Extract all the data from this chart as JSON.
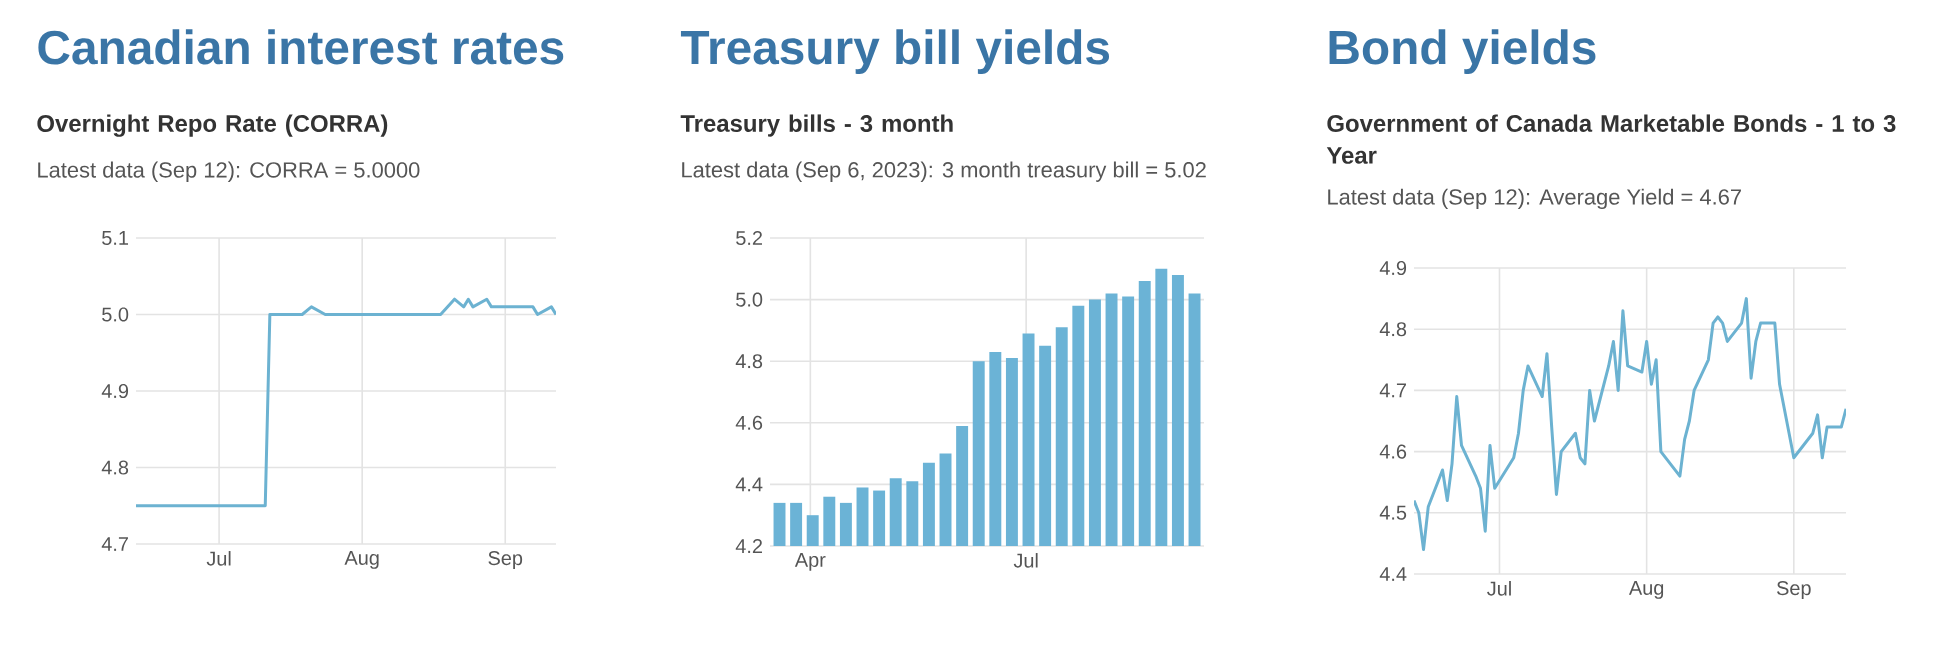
{
  "chart_data": [
    {
      "type": "line",
      "title": "Canadian interest rates",
      "subtitle": "Overnight Repo Rate (CORRA)",
      "annotations": [
        "Latest data (Sep 12): CORRA = 5.0000"
      ],
      "color": "#6cb2d1",
      "grid": true,
      "x": [
        "2023-06-13",
        "2023-07-11",
        "2023-07-12",
        "2023-07-19",
        "2023-07-21",
        "2023-07-24",
        "2023-08-18",
        "2023-08-21",
        "2023-08-23",
        "2023-08-24",
        "2023-08-25",
        "2023-08-28",
        "2023-08-29",
        "2023-09-07",
        "2023-09-08",
        "2023-09-11",
        "2023-09-12"
      ],
      "values": [
        4.75,
        4.75,
        5.0,
        5.0,
        5.01,
        5.0,
        5.0,
        5.02,
        5.01,
        5.02,
        5.01,
        5.02,
        5.01,
        5.01,
        5.0,
        5.01,
        5.0
      ],
      "xlim": [
        "2023-06-13",
        "2023-09-12"
      ],
      "xticks": [
        {
          "value": "2023-07-01",
          "label": "Jul"
        },
        {
          "value": "2023-08-01",
          "label": "Aug"
        },
        {
          "value": "2023-09-01",
          "label": "Sep"
        }
      ],
      "ylim": [
        4.7,
        5.1
      ],
      "yticks": [
        4.7,
        4.8,
        4.9,
        {
          "value": 5.0,
          "label": "5.0"
        },
        5.1
      ]
    },
    {
      "type": "bar",
      "title": "Treasury bill yields",
      "subtitle": "Treasury bills - 3 month",
      "annotations": [
        "Latest data (Sep 6, 2023): 3 month treasury bill = 5.02"
      ],
      "color": "#6bb3d6",
      "grid": true,
      "x": [
        "2023-03-19",
        "2023-03-26",
        "2023-04-02",
        "2023-04-09",
        "2023-04-16",
        "2023-04-23",
        "2023-04-30",
        "2023-05-07",
        "2023-05-14",
        "2023-05-21",
        "2023-05-28",
        "2023-06-04",
        "2023-06-11",
        "2023-06-18",
        "2023-06-25",
        "2023-07-02",
        "2023-07-09",
        "2023-07-16",
        "2023-07-23",
        "2023-07-30",
        "2023-08-06",
        "2023-08-13",
        "2023-08-20",
        "2023-08-27",
        "2023-09-03",
        "2023-09-10"
      ],
      "values": [
        4.34,
        4.34,
        4.3,
        4.36,
        4.34,
        4.39,
        4.38,
        4.42,
        4.41,
        4.47,
        4.5,
        4.59,
        4.8,
        4.83,
        4.81,
        4.89,
        4.85,
        4.91,
        4.98,
        5.0,
        5.02,
        5.01,
        5.06,
        5.1,
        5.08,
        5.02
      ],
      "xlim": [
        "2023-03-15",
        "2023-09-14"
      ],
      "xticks": [
        {
          "value": "2023-04-01",
          "label": "Apr"
        },
        {
          "value": "2023-07-01",
          "label": "Jul"
        }
      ],
      "ylim": [
        4.2,
        5.2
      ],
      "yticks": [
        4.2,
        4.4,
        4.6,
        4.8,
        {
          "value": 5.0,
          "label": "5.0"
        },
        5.2
      ]
    },
    {
      "type": "line",
      "title": "Bond yields",
      "subtitle": "Government of Canada Marketable Bonds - 1 to 3 Year",
      "annotations": [
        "Latest data (Sep 12): Average Yield = 4.67"
      ],
      "color": "#6cb2d1",
      "grid": true,
      "x": [
        "2023-06-13",
        "2023-06-14",
        "2023-06-15",
        "2023-06-16",
        "2023-06-19",
        "2023-06-20",
        "2023-06-21",
        "2023-06-22",
        "2023-06-23",
        "2023-06-26",
        "2023-06-27",
        "2023-06-28",
        "2023-06-29",
        "2023-06-30",
        "2023-07-04",
        "2023-07-05",
        "2023-07-06",
        "2023-07-07",
        "2023-07-10",
        "2023-07-11",
        "2023-07-12",
        "2023-07-13",
        "2023-07-14",
        "2023-07-17",
        "2023-07-18",
        "2023-07-19",
        "2023-07-20",
        "2023-07-21",
        "2023-07-24",
        "2023-07-25",
        "2023-07-26",
        "2023-07-27",
        "2023-07-28",
        "2023-07-31",
        "2023-08-01",
        "2023-08-02",
        "2023-08-03",
        "2023-08-04",
        "2023-08-08",
        "2023-08-09",
        "2023-08-10",
        "2023-08-11",
        "2023-08-14",
        "2023-08-15",
        "2023-08-16",
        "2023-08-17",
        "2023-08-18",
        "2023-08-21",
        "2023-08-22",
        "2023-08-23",
        "2023-08-24",
        "2023-08-25",
        "2023-08-28",
        "2023-08-29",
        "2023-08-30",
        "2023-08-31",
        "2023-09-01",
        "2023-09-05",
        "2023-09-06",
        "2023-09-07",
        "2023-09-08",
        "2023-09-11",
        "2023-09-12"
      ],
      "values": [
        4.52,
        4.5,
        4.44,
        4.51,
        4.57,
        4.52,
        4.58,
        4.69,
        4.61,
        4.56,
        4.54,
        4.47,
        4.61,
        4.54,
        4.59,
        4.63,
        4.7,
        4.74,
        4.69,
        4.76,
        4.64,
        4.53,
        4.6,
        4.63,
        4.59,
        4.58,
        4.7,
        4.65,
        4.74,
        4.78,
        4.7,
        4.83,
        4.74,
        4.73,
        4.78,
        4.71,
        4.75,
        4.6,
        4.56,
        4.62,
        4.65,
        4.7,
        4.75,
        4.81,
        4.82,
        4.81,
        4.78,
        4.81,
        4.85,
        4.72,
        4.78,
        4.81,
        4.81,
        4.71,
        4.67,
        4.63,
        4.59,
        4.63,
        4.66,
        4.59,
        4.64,
        4.64,
        4.67
      ],
      "xlim": [
        "2023-06-13",
        "2023-09-12"
      ],
      "xticks": [
        {
          "value": "2023-07-01",
          "label": "Jul"
        },
        {
          "value": "2023-08-01",
          "label": "Aug"
        },
        {
          "value": "2023-09-01",
          "label": "Sep"
        }
      ],
      "ylim": [
        4.4,
        4.9
      ],
      "yticks": [
        4.4,
        4.5,
        4.6,
        4.7,
        4.8,
        4.9
      ]
    }
  ]
}
